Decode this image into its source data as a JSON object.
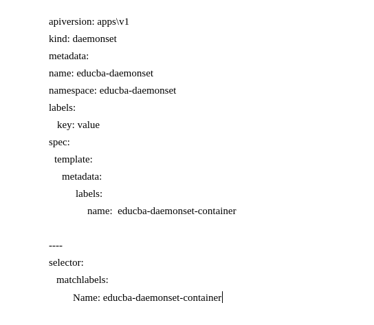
{
  "document": {
    "lines": [
      "apiversion: apps\\v1",
      "kind: daemonset",
      "metadata:",
      "name: educba-daemonset",
      "namespace: educba-daemonset",
      "labels:",
      "key: value",
      "spec:",
      "template:",
      "metadata:",
      "labels:",
      "name:  educba-daemonset-container",
      "----",
      "selector:",
      "matchlabels:",
      "Name: educba-daemonset-container"
    ]
  }
}
